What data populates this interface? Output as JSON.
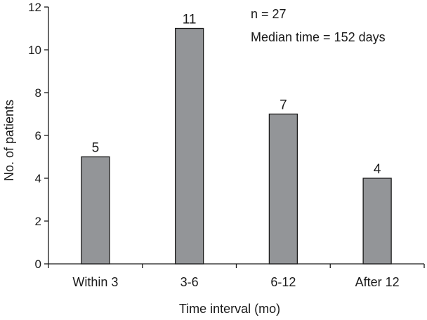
{
  "chart_data": {
    "type": "bar",
    "categories": [
      "Within 3",
      "3-6",
      "6-12",
      "After 12"
    ],
    "values": [
      5,
      11,
      7,
      4
    ],
    "data_labels": [
      "5",
      "11",
      "7",
      "4"
    ],
    "xlabel": "Time interval (mo)",
    "ylabel": "No. of patients",
    "ylim": [
      0,
      12
    ],
    "yticks": [
      0,
      2,
      4,
      6,
      8,
      10,
      12
    ],
    "annotations": [
      "n = 27",
      "Median time = 152 days"
    ],
    "bar_color": "#939598",
    "grid": false,
    "legend": "none"
  }
}
